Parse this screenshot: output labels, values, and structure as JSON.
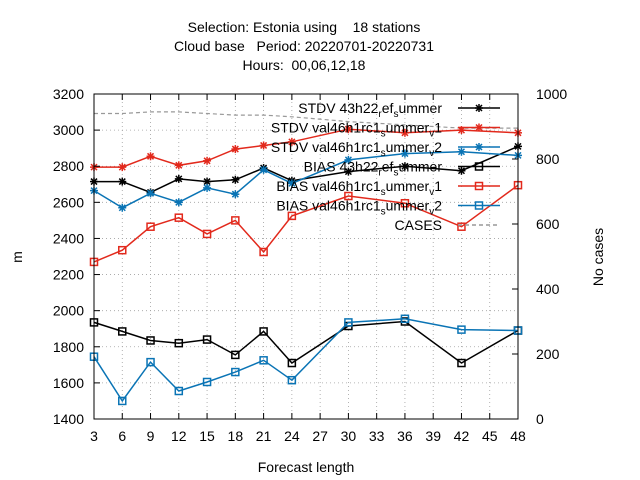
{
  "chart_data": {
    "type": "line",
    "title_lines": [
      "Selection: Estonia using    18 stations",
      "Cloud base   Period: 20220701-20220731",
      "Hours:  00,06,12,18"
    ],
    "xlabel": "Forecast length",
    "ylabel": "m",
    "y2label": "No cases",
    "xlim": [
      3,
      48
    ],
    "xticks": [
      3,
      6,
      9,
      12,
      15,
      18,
      21,
      24,
      27,
      30,
      33,
      36,
      39,
      42,
      45,
      48
    ],
    "ylim": [
      1400,
      3200
    ],
    "yticks": [
      1400,
      1600,
      1800,
      2000,
      2200,
      2400,
      2600,
      2800,
      3000,
      3200
    ],
    "y2lim": [
      0,
      1000
    ],
    "y2ticks": [
      0,
      200,
      400,
      600,
      800,
      1000
    ],
    "grid": true,
    "legend_position": "top-right",
    "series": [
      {
        "name": "STDV 43h22_ref_summer",
        "legend_label": {
          "text": "STDV 43h22",
          "sub": "r",
          "text2": "ef",
          "sub2": "s",
          "text3": "ummer"
        },
        "color": "#000000",
        "marker": "star",
        "style": "solid",
        "x": [
          3,
          6,
          9,
          12,
          15,
          18,
          21,
          24,
          30,
          36,
          42,
          48
        ],
        "values": [
          2715,
          2715,
          2655,
          2730,
          2715,
          2725,
          2790,
          2720,
          2770,
          2800,
          2775,
          2910
        ]
      },
      {
        "name": "STDV val46h1rc1_summer_v1",
        "legend_label": {
          "text": "STDV val46h1rc1",
          "sub": "s",
          "text2": "ummer",
          "sub2": "v",
          "text3": "1"
        },
        "color": "#e2291c",
        "marker": "star",
        "style": "solid",
        "x": [
          3,
          6,
          9,
          12,
          15,
          18,
          21,
          24,
          30,
          36,
          42,
          48
        ],
        "values": [
          2795,
          2795,
          2855,
          2805,
          2830,
          2895,
          2915,
          2935,
          3005,
          2985,
          3000,
          2985
        ]
      },
      {
        "name": "STDV val46h1rc1_summer_v2",
        "legend_label": {
          "text": "STDV val46h1rc1",
          "sub": "s",
          "text2": "ummer",
          "sub2": "v",
          "text3": "2"
        },
        "color": "#0a74b5",
        "marker": "star",
        "style": "solid",
        "x": [
          3,
          6,
          9,
          12,
          15,
          18,
          21,
          24,
          30,
          36,
          42,
          48
        ],
        "values": [
          2665,
          2570,
          2650,
          2600,
          2680,
          2645,
          2780,
          2705,
          2835,
          2870,
          2880,
          2860
        ]
      },
      {
        "name": "BIAS 43h22_ref_summer",
        "legend_label": {
          "text": "BIAS 43h22",
          "sub": "r",
          "text2": "ef",
          "sub2": "s",
          "text3": "ummer"
        },
        "color": "#000000",
        "marker": "square",
        "style": "solid",
        "x": [
          3,
          6,
          9,
          12,
          15,
          18,
          21,
          24,
          30,
          36,
          42,
          48
        ],
        "values": [
          1935,
          1885,
          1835,
          1820,
          1840,
          1755,
          1885,
          1710,
          1915,
          1940,
          1710,
          1890
        ]
      },
      {
        "name": "BIAS val46h1rc1_summer_v1",
        "legend_label": {
          "text": "BIAS val46h1rc1",
          "sub": "s",
          "text2": "ummer",
          "sub2": "v",
          "text3": "1"
        },
        "color": "#e2291c",
        "marker": "square",
        "style": "solid",
        "x": [
          3,
          6,
          9,
          12,
          15,
          18,
          21,
          24,
          30,
          36,
          42,
          48
        ],
        "values": [
          2270,
          2335,
          2465,
          2515,
          2425,
          2500,
          2325,
          2525,
          2635,
          2595,
          2465,
          2695
        ]
      },
      {
        "name": "BIAS val46h1rc1_summer_v2",
        "legend_label": {
          "text": "BIAS val46h1rc1",
          "sub": "s",
          "text2": "ummer",
          "sub2": "v",
          "text3": "2"
        },
        "color": "#0a74b5",
        "marker": "square",
        "style": "solid",
        "x": [
          3,
          6,
          9,
          12,
          15,
          18,
          21,
          24,
          30,
          36,
          42,
          48
        ],
        "values": [
          1745,
          1500,
          1715,
          1555,
          1605,
          1660,
          1725,
          1615,
          1935,
          1955,
          1895,
          1890
        ]
      },
      {
        "name": "CASES",
        "legend_label": {
          "text": "CASES"
        },
        "color": "#999999",
        "marker": "none",
        "style": "dashed",
        "axis": "y2",
        "x": [
          3,
          6,
          9,
          12,
          15,
          18,
          21,
          24,
          30,
          36,
          42,
          48
        ],
        "values": [
          940,
          940,
          945,
          945,
          940,
          935,
          935,
          930,
          915,
          905,
          895,
          895
        ]
      }
    ]
  }
}
